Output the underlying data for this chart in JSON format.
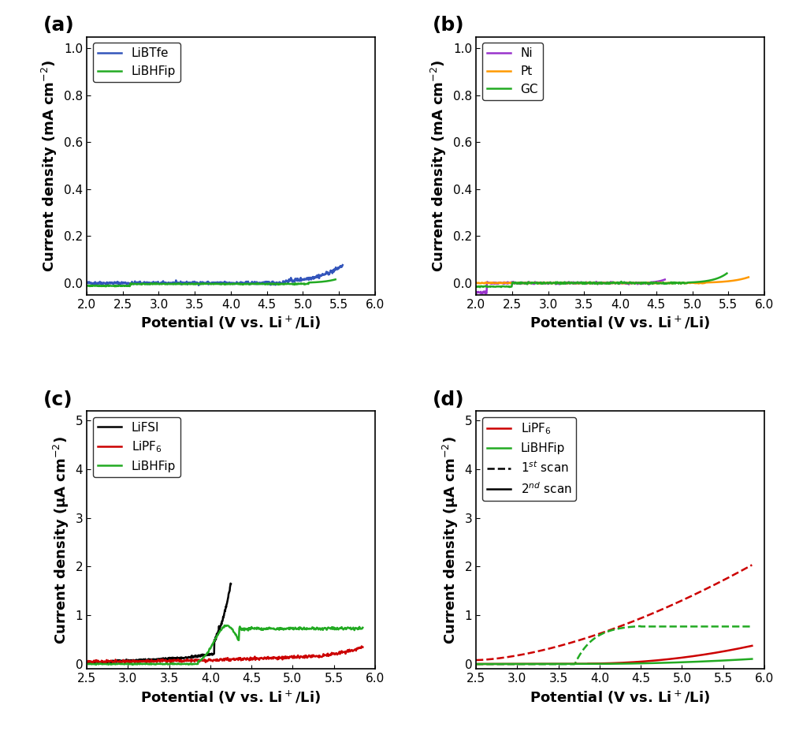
{
  "panel_labels": [
    "(a)",
    "(b)",
    "(c)",
    "(d)"
  ],
  "panel_label_fontsize": 18,
  "a_xlabel": "Potential (V vs. Li$^+$/Li)",
  "a_ylabel": "Current density (mA cm$^{-2}$)",
  "a_xlim": [
    2.0,
    6.0
  ],
  "a_ylim": [
    -0.05,
    1.05
  ],
  "a_xticks": [
    2.0,
    2.5,
    3.0,
    3.5,
    4.0,
    4.5,
    5.0,
    5.5,
    6.0
  ],
  "a_yticks": [
    0.0,
    0.2,
    0.4,
    0.6,
    0.8,
    1.0
  ],
  "a_legend": [
    "LiBTfe",
    "LiBHFip"
  ],
  "a_colors": [
    "#3355bb",
    "#22aa22"
  ],
  "b_xlabel": "Potential (V vs. Li$^+$/Li)",
  "b_ylabel": "Current density (mA cm$^{-2}$)",
  "b_xlim": [
    2.0,
    6.0
  ],
  "b_ylim": [
    -0.05,
    1.05
  ],
  "b_xticks": [
    2.0,
    2.5,
    3.0,
    3.5,
    4.0,
    4.5,
    5.0,
    5.5,
    6.0
  ],
  "b_yticks": [
    0.0,
    0.2,
    0.4,
    0.6,
    0.8,
    1.0
  ],
  "b_legend": [
    "Ni",
    "Pt",
    "GC"
  ],
  "b_colors": [
    "#9933cc",
    "#ff9900",
    "#22aa22"
  ],
  "c_xlabel": "Potential (V vs. Li$^+$/Li)",
  "c_ylabel": "Current density (μA cm$^{-2}$)",
  "c_xlim": [
    2.5,
    6.0
  ],
  "c_ylim": [
    -0.1,
    5.2
  ],
  "c_xticks": [
    2.5,
    3.0,
    3.5,
    4.0,
    4.5,
    5.0,
    5.5,
    6.0
  ],
  "c_yticks": [
    0,
    1,
    2,
    3,
    4,
    5
  ],
  "c_legend": [
    "LiFSI",
    "LiPF$_6$",
    "LiBHFip"
  ],
  "c_colors": [
    "#000000",
    "#cc0000",
    "#22aa22"
  ],
  "d_xlabel": "Potential (V vs. Li$^+$/Li)",
  "d_ylabel": "Current density (μA cm$^{-2}$)",
  "d_xlim": [
    2.5,
    6.0
  ],
  "d_ylim": [
    -0.1,
    5.2
  ],
  "d_xticks": [
    2.5,
    3.0,
    3.5,
    4.0,
    4.5,
    5.0,
    5.5,
    6.0
  ],
  "d_yticks": [
    0,
    1,
    2,
    3,
    4,
    5
  ],
  "d_legend": [
    "LiPF$_6$",
    "LiBHFip",
    "1$^{st}$ scan",
    "2$^{nd}$ scan"
  ],
  "d_colors": [
    "#cc0000",
    "#22aa22"
  ],
  "axis_label_fontsize": 13,
  "tick_label_fontsize": 11,
  "legend_fontsize": 11,
  "line_width": 1.8
}
